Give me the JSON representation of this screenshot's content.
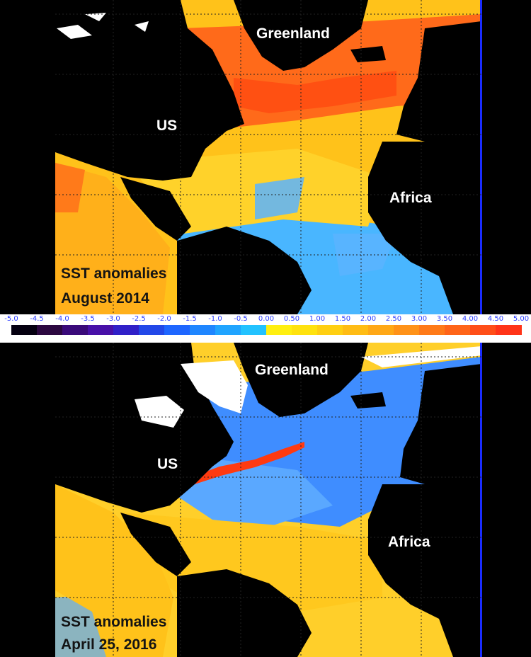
{
  "panels": [
    {
      "id": "top",
      "caption_line1": "SST anomalies",
      "caption_line2": "August 2014",
      "labels": {
        "greenland": "Greenland",
        "us": "US",
        "africa": "Africa"
      },
      "palette": {
        "north_atlantic": "#ff6a1a",
        "mid_ocean": "#ffc21a",
        "tropics": "#ffd22a",
        "south": "#49b6ff",
        "pacific": "#ffb01a",
        "gulf_stream": "#ff4a10"
      }
    },
    {
      "id": "bottom",
      "caption_line1": "SST anomalies",
      "caption_line2": "April 25, 2016",
      "labels": {
        "greenland": "Greenland",
        "us": "US",
        "africa": "Africa"
      },
      "palette": {
        "north_atlantic": "#3f8dff",
        "mid_ocean": "#5aa8ff",
        "tropics": "#ffc81e",
        "south": "#ffcf2a",
        "pacific": "#ffc21a",
        "gulf_stream": "#ff3a10"
      }
    }
  ],
  "colorbar": {
    "ticks": [
      "-5.0",
      "-4.5",
      "-4.0",
      "-3.5",
      "-3.0",
      "-2.5",
      "-2.0",
      "-1.5",
      "-1.0",
      "-0.5",
      "0.00",
      "0.50",
      "1.00",
      "1.50",
      "2.00",
      "2.50",
      "3.00",
      "3.50",
      "4.00",
      "4.50",
      "5.00"
    ],
    "colors": [
      "#050010",
      "#2c0840",
      "#3a0a7a",
      "#4810a8",
      "#3020c8",
      "#2248e8",
      "#1e66ff",
      "#1f86ff",
      "#20a4ff",
      "#22c2ff",
      "#ffef10",
      "#ffe20e",
      "#ffcf12",
      "#ffbc14",
      "#ffa816",
      "#ff9218",
      "#ff7a18",
      "#ff6418",
      "#ff4e18",
      "#ff3418"
    ]
  }
}
